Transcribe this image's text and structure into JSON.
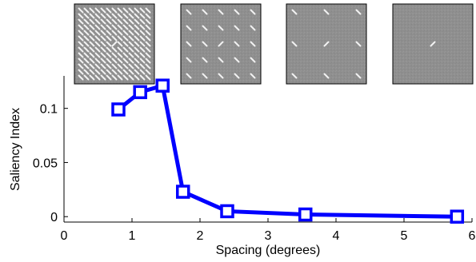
{
  "chart_data": {
    "type": "line",
    "xlabel": "Spacing (degrees)",
    "ylabel": "Saliency Index",
    "xlim": [
      0,
      6
    ],
    "ylim": [
      -0.005,
      0.13
    ],
    "xticks": [
      0,
      1,
      2,
      3,
      4,
      5,
      6
    ],
    "xtick_labels": [
      "0",
      "1",
      "2",
      "3",
      "4",
      "5",
      "6"
    ],
    "yticks": [
      0,
      0.05,
      0.1
    ],
    "ytick_labels": [
      "0",
      "0.05",
      "0.1"
    ],
    "grid": false,
    "series": [
      {
        "x": [
          0.8,
          1.12,
          1.45,
          1.75,
          2.4,
          3.55,
          5.78
        ],
        "y": [
          0.099,
          0.115,
          0.121,
          0.023,
          0.005,
          0.002,
          0.0
        ],
        "color": "#0000ff",
        "marker": "square"
      }
    ]
  },
  "stimuli": [
    {
      "name": "stimulus-densest-spacing",
      "spacing_level": 1
    },
    {
      "name": "stimulus-medium-spacing",
      "spacing_level": 2
    },
    {
      "name": "stimulus-sparse-spacing",
      "spacing_level": 3
    },
    {
      "name": "stimulus-single-element",
      "spacing_level": 4
    }
  ]
}
